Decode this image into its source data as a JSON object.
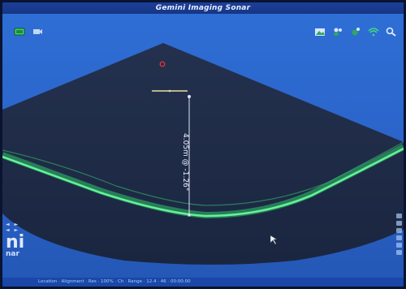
{
  "window": {
    "title": "Gemini Imaging Sonar"
  },
  "toolbar": {
    "left": [
      {
        "name": "record-icon"
      },
      {
        "name": "camera-icon"
      }
    ],
    "right": [
      {
        "name": "image-icon"
      },
      {
        "name": "users-icon"
      },
      {
        "name": "settings-icon"
      },
      {
        "name": "wifi-icon"
      },
      {
        "name": "search-icon"
      }
    ]
  },
  "measurement": {
    "label": "4.05m @ -1.26°"
  },
  "side_logo": {
    "controls": "◄ ►",
    "controls2": "◄ ►",
    "big": "ni",
    "small": "nar"
  },
  "status": {
    "text": "Location · Alignment · Res · 100% · Ch · Range · 12.4 · 46 · 00:00:00"
  },
  "colors": {
    "screen": "#2f6fd6",
    "fan": "#1c2a48",
    "echo": "#3fe07a",
    "title": "#163583"
  }
}
